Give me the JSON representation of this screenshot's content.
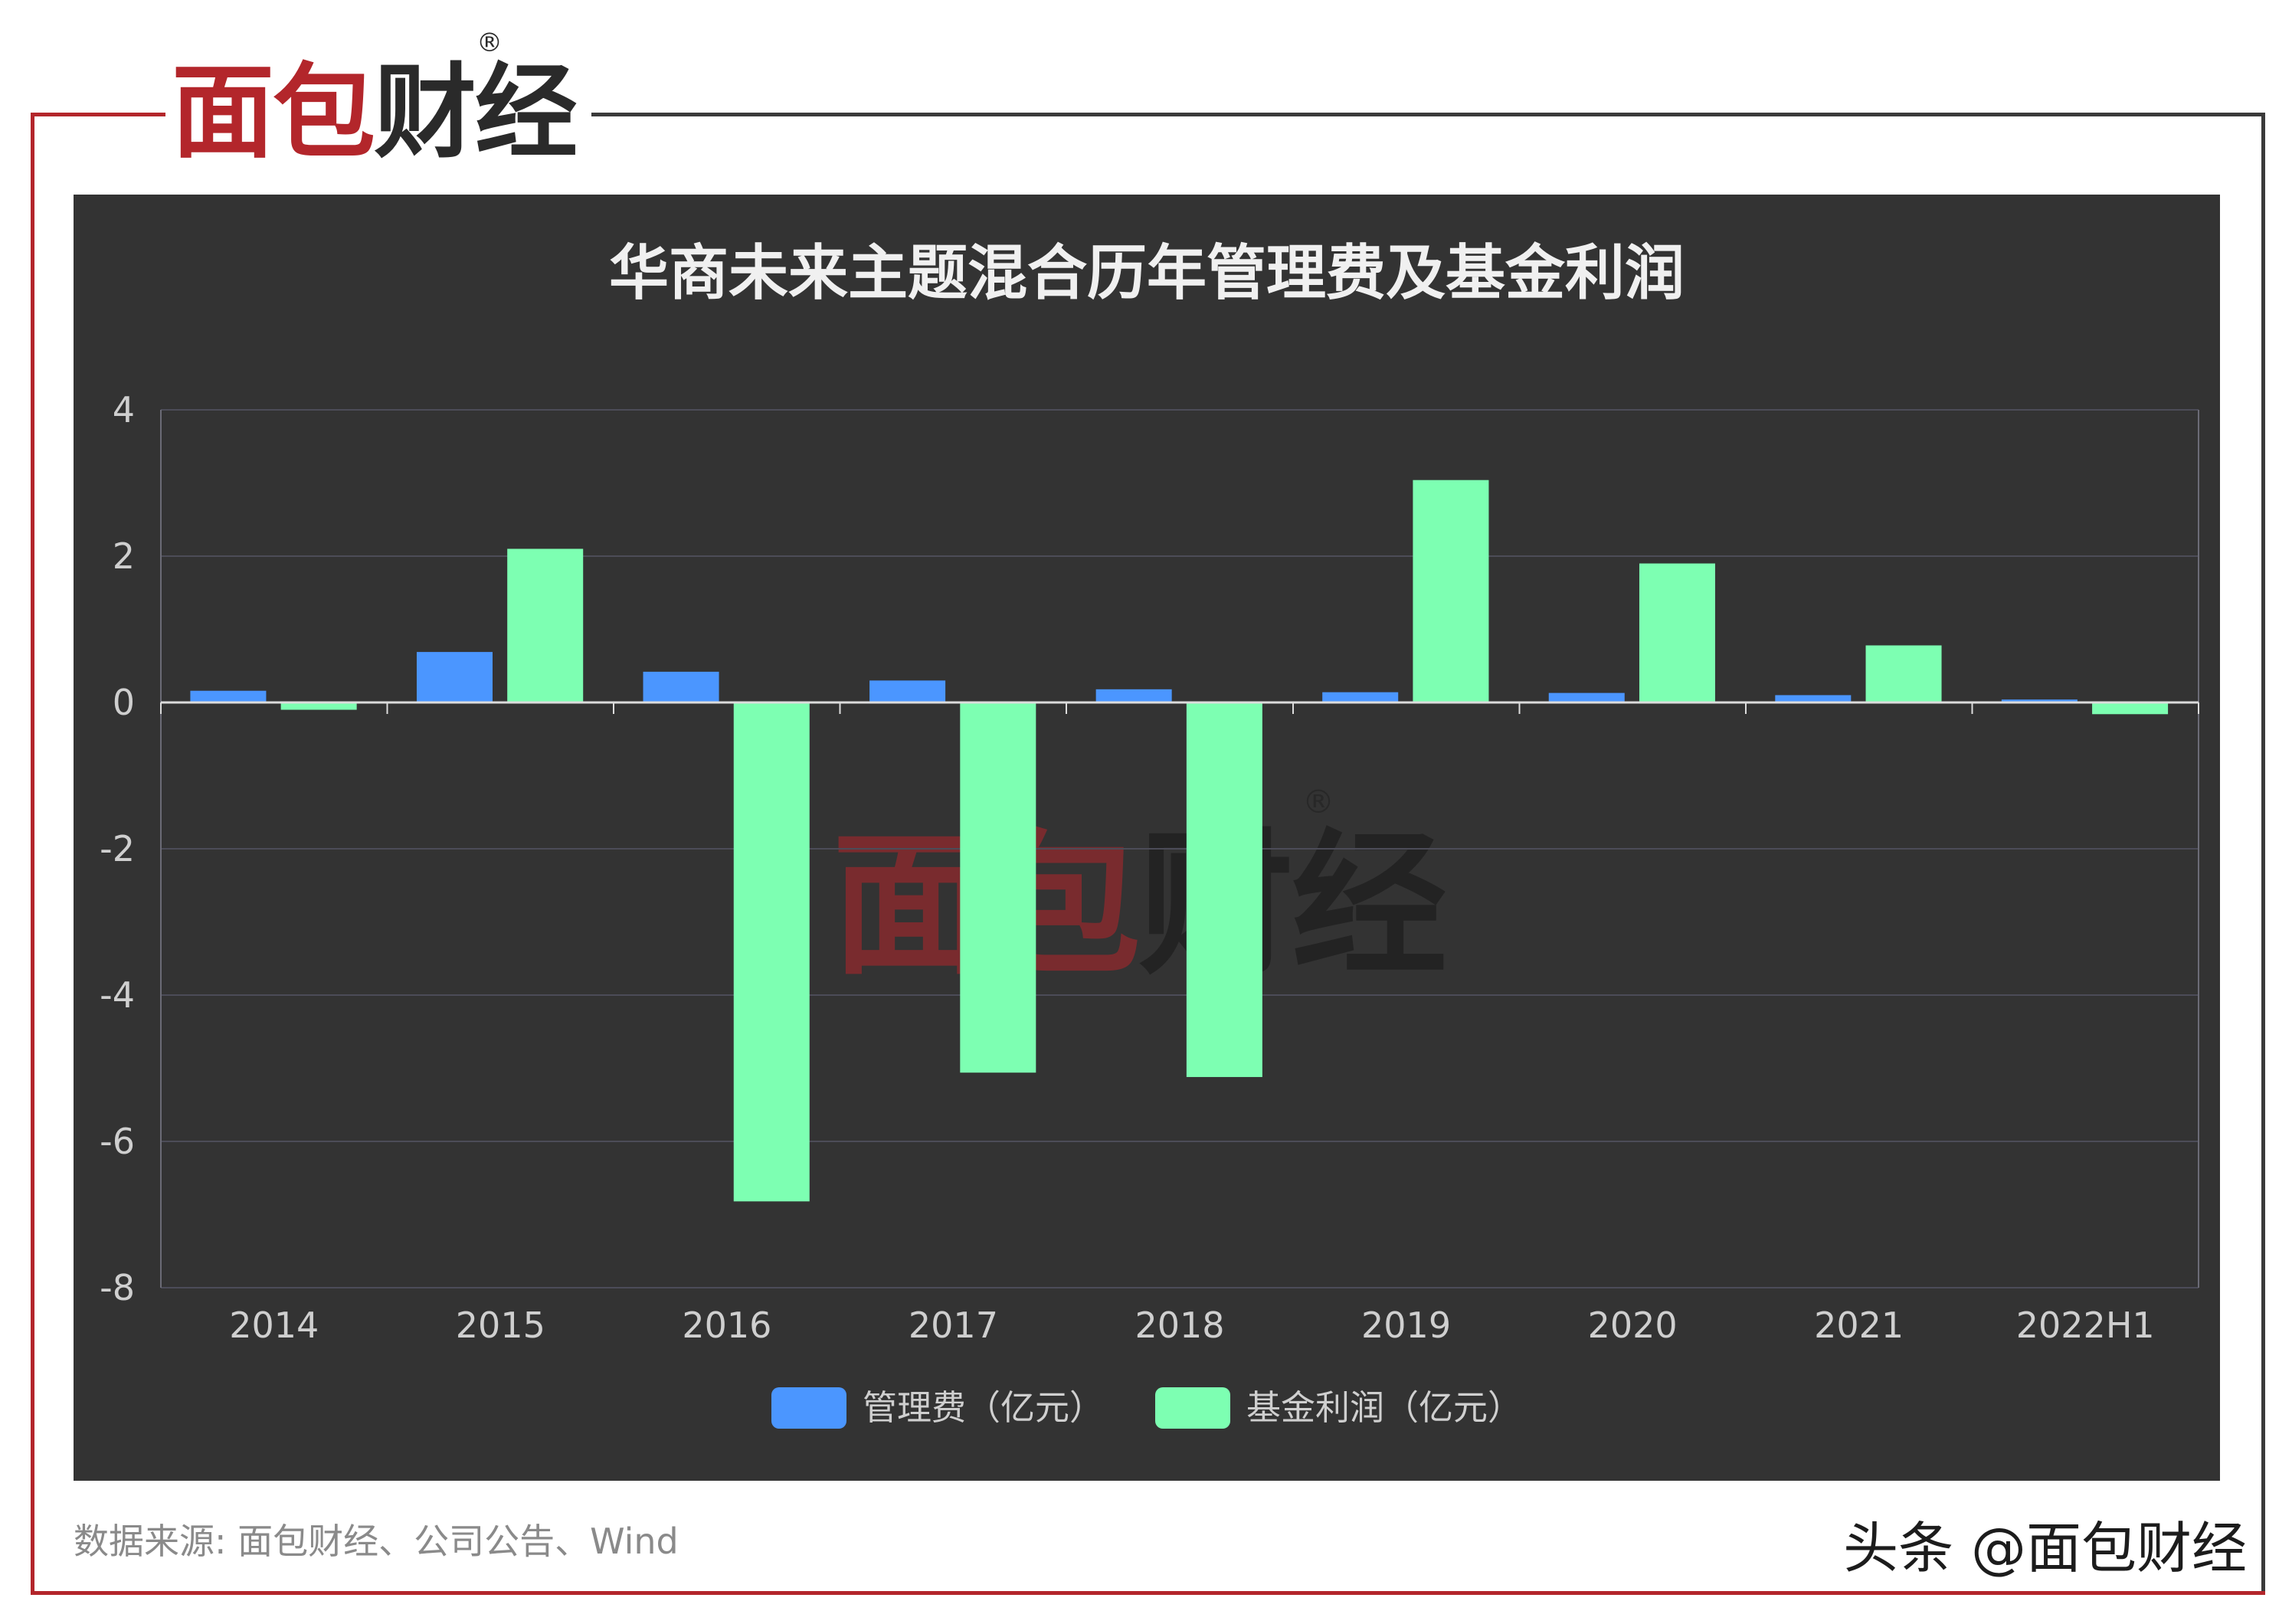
{
  "colors": {
    "brand_red": "#b3262b",
    "brand_dark": "#2a2a2a",
    "frame_dark": "#3a3a3a",
    "panel_bg": "#333333"
  },
  "logo": {
    "chars": [
      "面",
      "包",
      "财",
      "经"
    ],
    "registered": "®"
  },
  "watermark": {
    "chars": [
      "面",
      "包",
      "财",
      "经"
    ],
    "registered": "®"
  },
  "chart_data": {
    "type": "bar",
    "title": "华商未来主题混合历年管理费及基金利润",
    "categories": [
      "2014",
      "2015",
      "2016",
      "2017",
      "2018",
      "2019",
      "2020",
      "2021",
      "2022H1"
    ],
    "series": [
      {
        "name": "管理费（亿元）",
        "color": "#4b96ff",
        "values": [
          0.16,
          0.69,
          0.42,
          0.3,
          0.18,
          0.14,
          0.13,
          0.1,
          0.04
        ]
      },
      {
        "name": "基金利润（亿元）",
        "color": "#7dffb2",
        "values": [
          -0.1,
          2.1,
          -6.82,
          -5.06,
          -5.12,
          3.04,
          1.9,
          0.78,
          -0.16
        ]
      }
    ],
    "ylim": [
      -8,
      4
    ],
    "yticks": [
      4,
      2,
      0,
      -2,
      -4,
      -6,
      -8
    ],
    "grid": true,
    "legend_position": "bottom"
  },
  "footer": {
    "source": "数据来源: 面包财经、公司公告、Wind",
    "platform_mark": "头条 @面包财经"
  }
}
